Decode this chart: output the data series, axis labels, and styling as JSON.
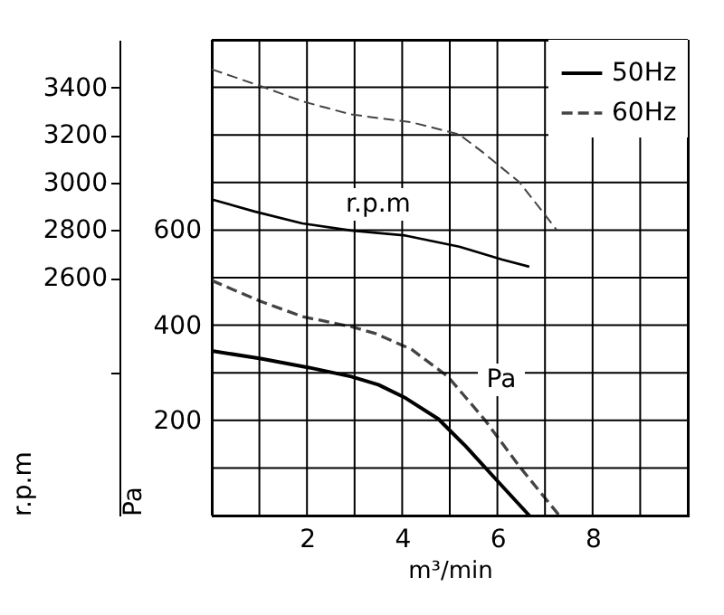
{
  "chart_data": {
    "type": "line",
    "xlabel": "m³/min",
    "ylabel": "Pa",
    "y2label": "r.p.m",
    "xlim": [
      0,
      10
    ],
    "xticks": [
      {
        "value": 0,
        "label": null
      },
      {
        "value": 1,
        "label": null
      },
      2,
      {
        "value": 3,
        "label": null
      },
      4,
      {
        "value": 5,
        "label": null
      },
      6,
      {
        "value": 7,
        "label": null
      },
      8,
      {
        "value": 9,
        "label": null
      },
      {
        "value": 10,
        "label": null
      }
    ],
    "ylim": [
      0,
      1000
    ],
    "yticks": [
      {
        "value": 0,
        "label": null
      },
      {
        "value": 100,
        "label": null
      },
      200,
      {
        "value": 300,
        "label": null
      },
      400,
      {
        "value": 500,
        "label": null
      },
      600,
      {
        "value": 700,
        "label": null
      },
      {
        "value": 800,
        "label": null
      },
      {
        "value": 900,
        "label": null
      },
      {
        "value": 1000,
        "label": null
      }
    ],
    "y2lim": [
      1600,
      3600
    ],
    "y2ticks": [
      {
        "value": 2200,
        "label": null
      },
      2600,
      2800,
      3000,
      3200,
      3400
    ],
    "grid": true,
    "legend": "top right",
    "marker": "none",
    "series": [
      {
        "name": "50Hz",
        "color": "#000000",
        "line_style": "solid",
        "x": [
          0,
          1.03,
          2.04,
          2.93,
          3.5,
          4.07,
          4.76,
          5.33,
          5.97,
          6.67
        ],
        "values": [
          346,
          330,
          311,
          292,
          275,
          247,
          203,
          146,
          76,
          0
        ]
      },
      {
        "name": "60Hz",
        "color": "#444444",
        "line_style": "dashed",
        "x": [
          0,
          1.03,
          1.91,
          2.93,
          3.43,
          4.2,
          4.96,
          5.72,
          6.48,
          7.3
        ],
        "values": [
          494,
          450,
          418,
          397,
          383,
          349,
          292,
          203,
          101,
          0
        ]
      },
      {
        "color": "#000000",
        "line_style": "solid",
        "axis": "y2",
        "x": [
          0,
          0.9,
          1.9,
          2.93,
          4.07,
          5.2,
          6.1,
          6.67
        ],
        "values": [
          2929,
          2878,
          2828,
          2798,
          2777,
          2730,
          2676,
          2646
        ]
      },
      {
        "color": "#444444",
        "line_style": "dashed",
        "axis": "y2",
        "x": [
          0,
          1.03,
          1.91,
          2.93,
          4.2,
          5.2,
          5.7,
          6.47,
          7.24
        ],
        "values": [
          3476,
          3405,
          3341,
          3286,
          3253,
          3202,
          3126,
          3000,
          2802
        ]
      }
    ],
    "annotations": [
      "r.p.m",
      "Pa"
    ]
  }
}
